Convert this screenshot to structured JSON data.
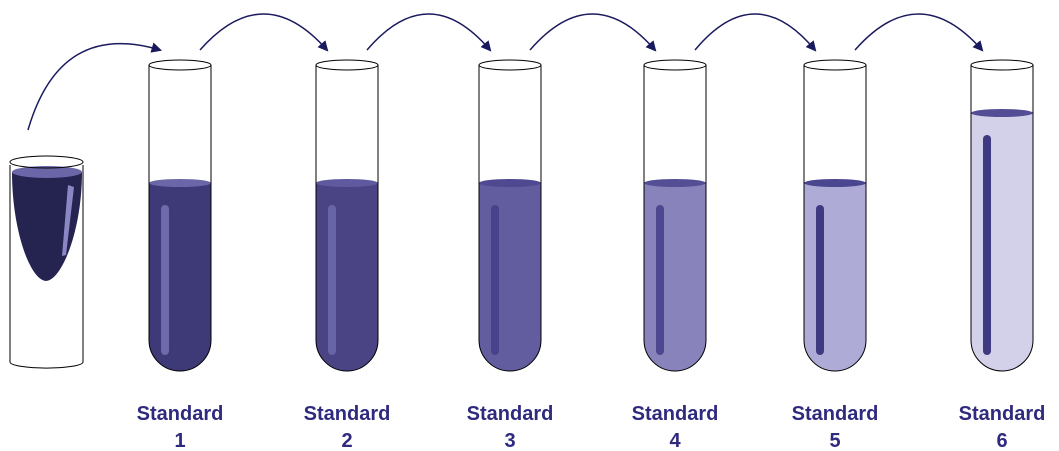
{
  "tubes": [
    {
      "label": "Standard",
      "number": "1"
    },
    {
      "label": "Standard",
      "number": "2"
    },
    {
      "label": "Standard",
      "number": "3"
    },
    {
      "label": "Standard",
      "number": "4"
    },
    {
      "label": "Standard",
      "number": "5"
    },
    {
      "label": "Standard",
      "number": "6"
    }
  ]
}
